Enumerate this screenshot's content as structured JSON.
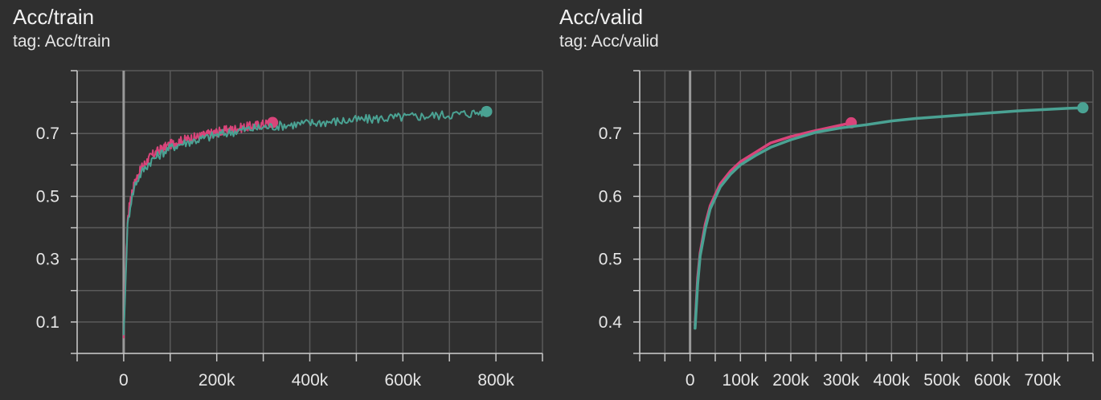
{
  "colors": {
    "background": "#2f2f2f",
    "grid": "#5a5a5a",
    "axis": "#c8c8c8",
    "zero_line": "#9a9a9a",
    "run_1": "#d9447a",
    "run_2": "#4aa293"
  },
  "chart_data": [
    {
      "type": "line",
      "title": "Acc/train",
      "subtitle": "tag: Acc/train",
      "xlim": [
        -100000,
        900000
      ],
      "ylim": [
        0.0,
        0.9
      ],
      "x_ticks": [
        0,
        200000,
        400000,
        600000,
        800000
      ],
      "x_tick_labels": [
        "0",
        "200k",
        "400k",
        "600k",
        "800k"
      ],
      "y_ticks": [
        0.1,
        0.3,
        0.5,
        0.7
      ],
      "y_tick_labels": [
        "0.1",
        "0.3",
        "0.5",
        "0.7"
      ],
      "grid": true,
      "series": [
        {
          "color": "#d9447a",
          "noisy": true,
          "x": [
            0,
            3000,
            8000,
            15000,
            25000,
            40000,
            60000,
            80000,
            100000,
            130000,
            160000,
            200000,
            240000,
            280000,
            320000
          ],
          "values": [
            0.05,
            0.2,
            0.42,
            0.5,
            0.55,
            0.595,
            0.63,
            0.65,
            0.665,
            0.68,
            0.69,
            0.705,
            0.715,
            0.725,
            0.735
          ]
        },
        {
          "color": "#4aa293",
          "noisy": true,
          "x": [
            0,
            3000,
            8000,
            15000,
            25000,
            40000,
            60000,
            80000,
            100000,
            130000,
            160000,
            200000,
            250000,
            300000,
            350000,
            400000,
            450000,
            500000,
            550000,
            600000,
            650000,
            700000,
            750000,
            780000
          ],
          "values": [
            0.06,
            0.18,
            0.4,
            0.48,
            0.54,
            0.58,
            0.615,
            0.635,
            0.655,
            0.67,
            0.68,
            0.695,
            0.71,
            0.72,
            0.727,
            0.733,
            0.738,
            0.743,
            0.748,
            0.752,
            0.756,
            0.76,
            0.765,
            0.77
          ]
        }
      ]
    },
    {
      "type": "line",
      "title": "Acc/valid",
      "subtitle": "tag: Acc/valid",
      "xlim": [
        -100000,
        800000
      ],
      "ylim": [
        0.35,
        0.8
      ],
      "x_ticks": [
        0,
        100000,
        200000,
        300000,
        400000,
        500000,
        600000,
        700000
      ],
      "x_tick_labels": [
        "0",
        "100k",
        "200k",
        "300k",
        "400k",
        "500k",
        "600k",
        "700k"
      ],
      "y_ticks": [
        0.4,
        0.5,
        0.6,
        0.7
      ],
      "y_tick_labels": [
        "0.4",
        "0.5",
        "0.6",
        "0.7"
      ],
      "grid": true,
      "series": [
        {
          "color": "#d9447a",
          "noisy": false,
          "x": [
            10000,
            15000,
            20000,
            30000,
            40000,
            60000,
            80000,
            100000,
            130000,
            160000,
            200000,
            240000,
            280000,
            320000
          ],
          "values": [
            0.395,
            0.47,
            0.51,
            0.555,
            0.585,
            0.62,
            0.64,
            0.655,
            0.67,
            0.685,
            0.695,
            0.703,
            0.71,
            0.717
          ]
        },
        {
          "color": "#4aa293",
          "noisy": false,
          "x": [
            10000,
            15000,
            20000,
            30000,
            40000,
            60000,
            80000,
            100000,
            130000,
            160000,
            200000,
            250000,
            300000,
            350000,
            400000,
            450000,
            500000,
            550000,
            600000,
            650000,
            700000,
            750000,
            780000
          ],
          "values": [
            0.39,
            0.46,
            0.505,
            0.548,
            0.58,
            0.615,
            0.635,
            0.65,
            0.665,
            0.678,
            0.69,
            0.702,
            0.709,
            0.714,
            0.72,
            0.724,
            0.727,
            0.73,
            0.733,
            0.736,
            0.738,
            0.74,
            0.741
          ]
        }
      ]
    }
  ]
}
